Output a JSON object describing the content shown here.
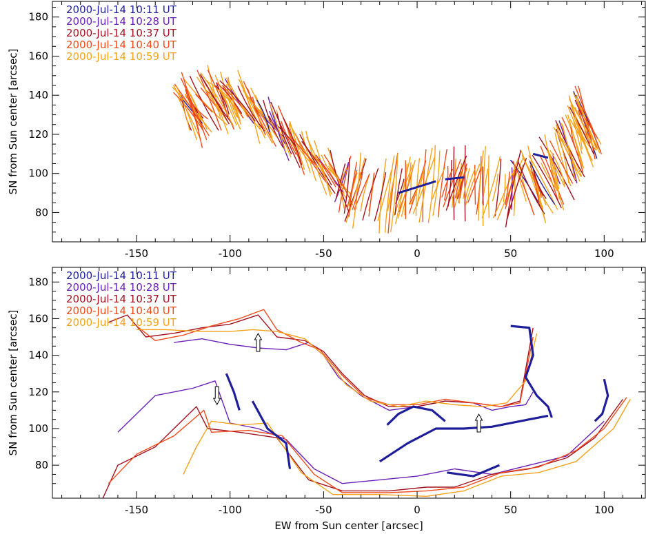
{
  "chart_data": [
    {
      "type": "line",
      "panel": "top",
      "xlabel": "",
      "ylabel": "SN from Sun center [arcsec]",
      "xlim": [
        -195,
        122
      ],
      "ylim": [
        65,
        188
      ],
      "xticks": [
        -150,
        -100,
        -50,
        0,
        50,
        100
      ],
      "yticks": [
        80,
        100,
        120,
        140,
        160,
        180
      ],
      "legend": [
        {
          "label": "2000-Jul-14 10:11 UT",
          "color": "#1e1e9a"
        },
        {
          "label": "2000-Jul-14 10:28 UT",
          "color": "#6a1fb8"
        },
        {
          "label": "2000-Jul-14 10:37 UT",
          "color": "#a3111e"
        },
        {
          "label": "2000-Jul-14 10:40 UT",
          "color": "#ef4a1a"
        },
        {
          "label": "2000-Jul-14 10:59 UT",
          "color": "#f5a21a"
        }
      ],
      "legend_position": "top-left"
    },
    {
      "type": "line",
      "panel": "bottom",
      "xlabel": "EW from Sun center [arcsec]",
      "ylabel": "SN from Sun center [arcsec]",
      "xlim": [
        -195,
        122
      ],
      "ylim": [
        62,
        188
      ],
      "xticks": [
        -150,
        -100,
        -50,
        0,
        50,
        100
      ],
      "yticks": [
        80,
        100,
        120,
        140,
        160,
        180
      ],
      "legend": [
        {
          "label": "2000-Jul-14 10:11 UT",
          "color": "#1e1e9a"
        },
        {
          "label": "2000-Jul-14 10:28 UT",
          "color": "#6a1fb8"
        },
        {
          "label": "2000-Jul-14 10:37 UT",
          "color": "#a3111e"
        },
        {
          "label": "2000-Jul-14 10:40 UT",
          "color": "#ef4a1a"
        },
        {
          "label": "2000-Jul-14 10:59 UT",
          "color": "#f5a21a"
        }
      ],
      "legend_position": "top-left",
      "series": [
        {
          "name": "2000-Jul-14 10:28 UT",
          "color": "#6a1fb8",
          "x": [
            -130,
            -115,
            -100,
            -85,
            -70,
            -58,
            -50,
            -42,
            -30,
            -15,
            0,
            15,
            30,
            40,
            50,
            58,
            62
          ],
          "y": [
            147,
            149,
            146,
            144,
            143,
            147,
            140,
            128,
            118,
            110,
            112,
            115,
            114,
            110,
            112,
            113,
            120
          ]
        },
        {
          "name": "2000-Jul-14 10:37 UT",
          "color": "#a3111e",
          "x": [
            -165,
            -155,
            -145,
            -130,
            -115,
            -100,
            -85,
            -75,
            -60,
            -50,
            -40,
            -28,
            -15,
            0,
            15,
            30,
            45,
            55,
            62
          ],
          "y": [
            158,
            162,
            150,
            152,
            155,
            157,
            162,
            150,
            148,
            142,
            130,
            118,
            112,
            112,
            115,
            114,
            112,
            115,
            155
          ]
        },
        {
          "name": "2000-Jul-14 10:40 UT",
          "color": "#ef4a1a",
          "x": [
            -150,
            -140,
            -125,
            -110,
            -95,
            -82,
            -75,
            -62,
            -52,
            -40,
            -28,
            -15,
            0,
            15,
            30,
            45,
            55,
            62
          ],
          "y": [
            156,
            148,
            151,
            156,
            160,
            165,
            154,
            147,
            143,
            129,
            117,
            113,
            113,
            116,
            114,
            112,
            114,
            150
          ]
        },
        {
          "name": "2000-Jul-14 10:59 UT",
          "color": "#f5a21a",
          "x": [
            -150,
            -135,
            -115,
            -100,
            -88,
            -75,
            -60,
            -50,
            -38,
            -25,
            -10,
            5,
            20,
            35,
            48,
            58,
            64
          ],
          "y": [
            154,
            154,
            153,
            153,
            154,
            153,
            149,
            140,
            124,
            115,
            112,
            115,
            113,
            112,
            114,
            126,
            152
          ]
        },
        {
          "name": "2000-Jul-14 10:11 UT",
          "color": "#1e1e9a",
          "x": [
            -20,
            -5,
            10,
            25,
            40,
            55,
            70
          ],
          "y": [
            82,
            92,
            100,
            100,
            101,
            104,
            107
          ]
        }
      ]
    }
  ],
  "annotations": {
    "arrows": [
      {
        "panel": "bottom",
        "x": -85,
        "y": 147,
        "direction": "up"
      },
      {
        "panel": "bottom",
        "x": -107,
        "y": 118,
        "direction": "down"
      },
      {
        "panel": "bottom",
        "x": 33,
        "y": 103,
        "direction": "up"
      }
    ]
  }
}
